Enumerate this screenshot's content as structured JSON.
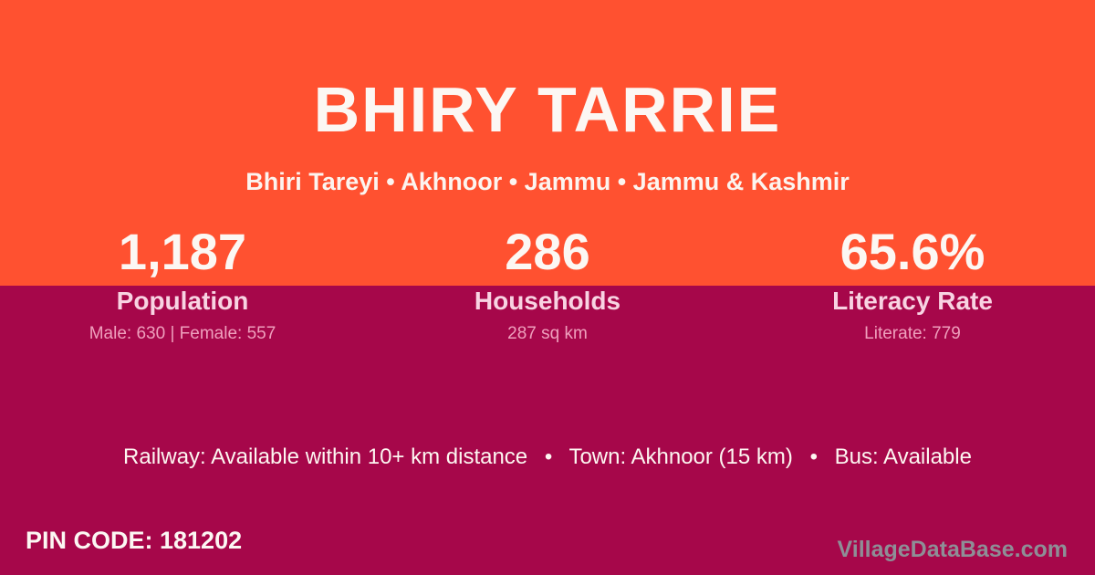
{
  "theme": {
    "top_background": "#FF5130",
    "bottom_background": "#A6074A",
    "title_color": "#FCF7F3",
    "stat_label_color": "#F8D3E2",
    "stat_detail_color": "#EFA0BD",
    "watermark_color": "#8E8E96"
  },
  "header": {
    "title": "BHIRY TARRIE",
    "subtitle": "Bhiri Tareyi • Akhnoor • Jammu • Jammu & Kashmir"
  },
  "stats": [
    {
      "value": "1,187",
      "label": "Population",
      "detail": "Male: 630 | Female: 557"
    },
    {
      "value": "286",
      "label": "Households",
      "detail": "287 sq km"
    },
    {
      "value": "65.6%",
      "label": "Literacy Rate",
      "detail": "Literate: 779"
    }
  ],
  "transport": {
    "line": "Railway: Available within 10+ km distance  •  Town: Akhnoor (15 km)  •  Bus: Available"
  },
  "footer": {
    "pin_code": "PIN CODE: 181202",
    "watermark": "VillageDataBase.com"
  }
}
